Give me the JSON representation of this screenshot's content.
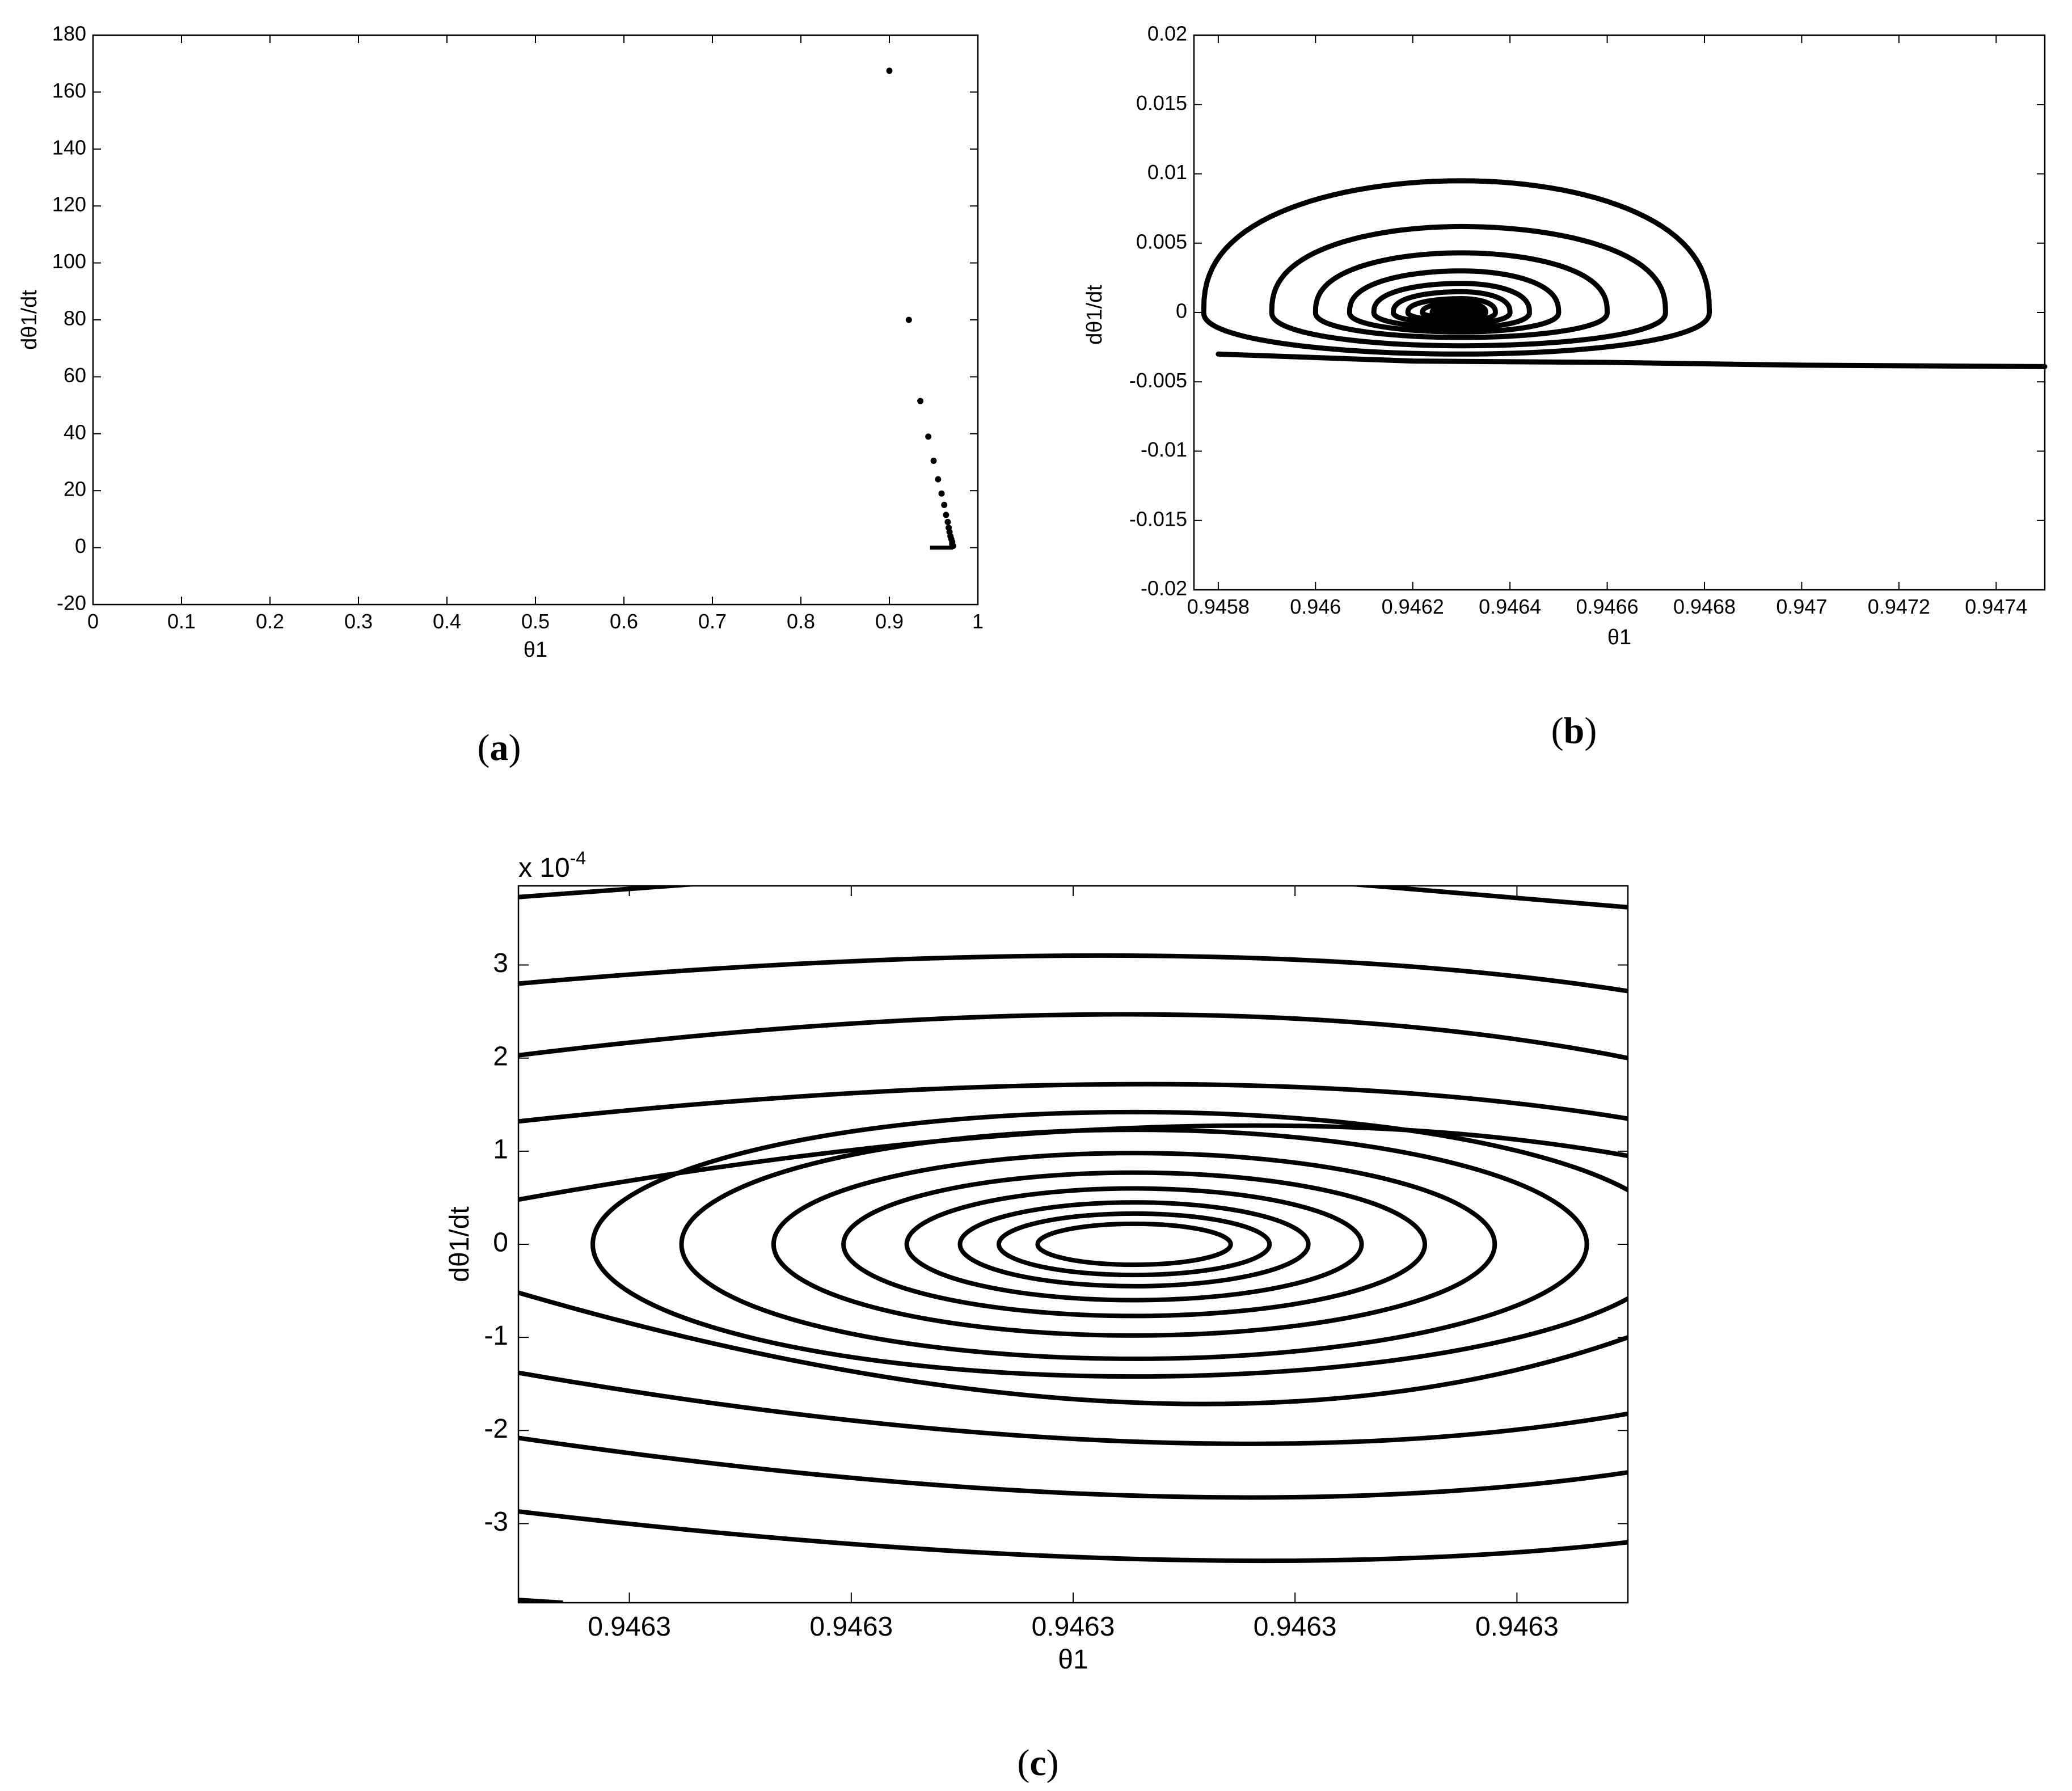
{
  "chart_data": [
    {
      "id": "a",
      "type": "scatter",
      "panel_label": "(a)",
      "xlabel": "θ1",
      "ylabel": "dθ1/dt",
      "xlim": [
        0,
        1
      ],
      "ylim": [
        -20,
        180
      ],
      "xticks": [
        0,
        0.1,
        0.2,
        0.3,
        0.4,
        0.5,
        0.6,
        0.7,
        0.8,
        0.9,
        1
      ],
      "xtick_labels": [
        "0",
        "0.1",
        "0.2",
        "0.3",
        "0.4",
        "0.5",
        "0.6",
        "0.7",
        "0.8",
        "0.9",
        "1"
      ],
      "yticks": [
        -20,
        0,
        20,
        40,
        60,
        80,
        100,
        120,
        140,
        160,
        180
      ],
      "ytick_labels": [
        "-20",
        "0",
        "20",
        "40",
        "60",
        "80",
        "100",
        "120",
        "140",
        "160",
        "180"
      ],
      "grid": false,
      "points": [
        {
          "x": 0.9,
          "y": 167.5
        },
        {
          "x": 0.922,
          "y": 80.0
        },
        {
          "x": 0.935,
          "y": 51.5
        },
        {
          "x": 0.944,
          "y": 39.0
        },
        {
          "x": 0.95,
          "y": 30.5
        },
        {
          "x": 0.955,
          "y": 24.0
        },
        {
          "x": 0.959,
          "y": 19.0
        },
        {
          "x": 0.962,
          "y": 15.0
        },
        {
          "x": 0.964,
          "y": 11.5
        },
        {
          "x": 0.966,
          "y": 9.0
        },
        {
          "x": 0.967,
          "y": 7.0
        },
        {
          "x": 0.968,
          "y": 5.5
        },
        {
          "x": 0.969,
          "y": 4.0
        },
        {
          "x": 0.97,
          "y": 3.0
        },
        {
          "x": 0.971,
          "y": 2.0
        },
        {
          "x": 0.971,
          "y": 1.2
        },
        {
          "x": 0.972,
          "y": 0.6
        }
      ],
      "cluster_segment": {
        "x_from": 0.946,
        "x_to": 0.972,
        "y": 0
      }
    },
    {
      "id": "b",
      "type": "line",
      "panel_label": "(b)",
      "xlabel": "θ1",
      "ylabel": "dθ1/dt",
      "xlim": [
        0.94575,
        0.9475
      ],
      "ylim": [
        -0.02,
        0.02
      ],
      "xticks": [
        0.9458,
        0.946,
        0.9462,
        0.9464,
        0.9466,
        0.9468,
        0.947,
        0.9472,
        0.9474
      ],
      "xtick_labels": [
        "0.9458",
        "0.946",
        "0.9462",
        "0.9464",
        "0.9466",
        "0.9468",
        "0.947",
        "0.9472",
        "0.9474"
      ],
      "yticks": [
        -0.02,
        -0.015,
        -0.01,
        -0.005,
        0,
        0.005,
        0.01,
        0.015,
        0.02
      ],
      "ytick_labels": [
        "-0.02",
        "-0.015",
        "-0.01",
        "-0.005",
        "0",
        "0.005",
        "0.01",
        "0.015",
        "0.02"
      ],
      "grid": false,
      "trajectory": {
        "center": [
          0.9463,
          0.0
        ],
        "tail": [
          [
            0.9475,
            -0.0039
          ],
          [
            0.947,
            -0.0038
          ],
          [
            0.9466,
            -0.0036
          ],
          [
            0.9462,
            -0.0035
          ],
          [
            0.9458,
            -0.003
          ]
        ],
        "loops": [
          {
            "left": 0.94577,
            "right": 0.94681,
            "top": 0.0095,
            "bottom": -0.003
          },
          {
            "left": 0.94591,
            "right": 0.94672,
            "top": 0.0062,
            "bottom": -0.0024
          },
          {
            "left": 0.946,
            "right": 0.9466,
            "top": 0.0043,
            "bottom": -0.0018
          },
          {
            "left": 0.94607,
            "right": 0.9465,
            "top": 0.003,
            "bottom": -0.0014
          },
          {
            "left": 0.94612,
            "right": 0.94644,
            "top": 0.0021,
            "bottom": -0.0011
          },
          {
            "left": 0.94616,
            "right": 0.9464,
            "top": 0.0015,
            "bottom": -0.0008
          },
          {
            "left": 0.94619,
            "right": 0.94637,
            "top": 0.001,
            "bottom": -0.0006
          },
          {
            "left": 0.94622,
            "right": 0.94635,
            "top": 0.0007,
            "bottom": -0.0004
          },
          {
            "left": 0.94624,
            "right": 0.94634,
            "top": 0.0005,
            "bottom": -0.0003
          }
        ]
      }
    },
    {
      "id": "c",
      "type": "line",
      "panel_label": "(c)",
      "xlabel": "θ1",
      "ylabel": "dθ1/dt",
      "y_multiplier_label": "x 10",
      "y_multiplier_exponent": "-4",
      "xlim": [
        0,
        1
      ],
      "ylim": [
        -3.85,
        3.85
      ],
      "xticks": [
        0.1,
        0.3,
        0.5,
        0.7,
        0.9
      ],
      "xtick_labels": [
        "0.9463",
        "0.9463",
        "0.9463",
        "0.9463",
        "0.9463"
      ],
      "yticks": [
        -3,
        -2,
        -1,
        0,
        1,
        2,
        3
      ],
      "ytick_labels": [
        "-3",
        "-2",
        "-1",
        "0",
        "1",
        "2",
        "3"
      ],
      "grid": false,
      "center": [
        0.555,
        0.0
      ],
      "ellipses": [
        {
          "rx": 0.087,
          "ry": 0.22
        },
        {
          "rx": 0.122,
          "ry": 0.33
        },
        {
          "rx": 0.157,
          "ry": 0.45
        },
        {
          "rx": 0.205,
          "ry": 0.6
        },
        {
          "rx": 0.262,
          "ry": 0.77
        },
        {
          "rx": 0.325,
          "ry": 0.98
        },
        {
          "rx": 0.408,
          "ry": 1.23
        },
        {
          "rx": 0.488,
          "ry": 1.42
        }
      ],
      "outer_arcs": [
        {
          "y_left": 0.48,
          "y_mid": 1.25,
          "y_right": 0.95
        },
        {
          "y_left": -0.52,
          "y_mid": -1.7,
          "y_right": -1.0
        },
        {
          "y_left": 1.32,
          "y_mid": 1.72,
          "y_right": 1.35
        },
        {
          "y_left": -1.38,
          "y_mid": -2.12,
          "y_right": -1.82
        },
        {
          "y_left": 2.03,
          "y_mid": 2.47,
          "y_right": 2.0
        },
        {
          "y_left": -2.08,
          "y_mid": -2.7,
          "y_right": -2.45
        },
        {
          "y_left": 2.8,
          "y_mid": 3.1,
          "y_right": 2.72
        },
        {
          "y_left": -2.87,
          "y_mid": -3.38,
          "y_right": -3.2
        }
      ],
      "edge_fragments": [
        {
          "from": [
            0.0,
            3.73
          ],
          "to": [
            0.16,
            3.87
          ]
        },
        {
          "from": [
            0.75,
            3.87
          ],
          "to": [
            1.0,
            3.62
          ]
        },
        {
          "from": [
            0.0,
            -3.82
          ],
          "to": [
            0.04,
            -3.85
          ]
        }
      ]
    }
  ]
}
